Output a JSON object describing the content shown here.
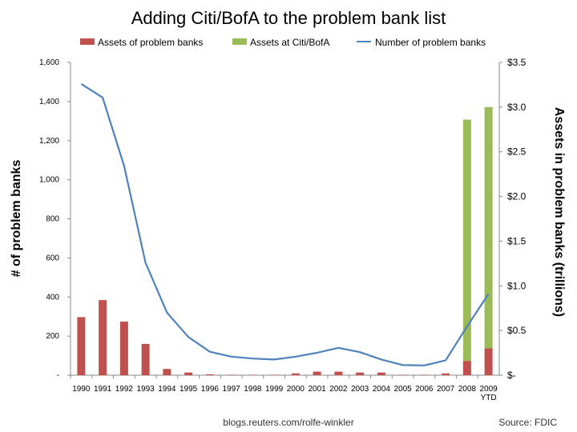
{
  "chart_data": {
    "type": "bar",
    "title": "Adding Citi/BofA to the problem bank list",
    "categories": [
      "1990",
      "1991",
      "1992",
      "1993",
      "1994",
      "1995",
      "1996",
      "1997",
      "1998",
      "1999",
      "2000",
      "2001",
      "2002",
      "2003",
      "2004",
      "2005",
      "2006",
      "2007",
      "2008",
      "2009"
    ],
    "category_sublabels": {
      "2009": "YTD"
    },
    "series": [
      {
        "name": "Assets of problem banks",
        "type": "bar",
        "axis": "right",
        "color": "#c0504d",
        "values": [
          0.65,
          0.84,
          0.6,
          0.35,
          0.07,
          0.03,
          0.01,
          0.005,
          0.005,
          0.005,
          0.02,
          0.04,
          0.04,
          0.03,
          0.03,
          0.005,
          0.005,
          0.02,
          0.16,
          0.3
        ]
      },
      {
        "name": "Assets at Citi/BofA",
        "type": "bar",
        "axis": "right",
        "stacked": true,
        "color": "#9bbb59",
        "values": [
          0,
          0,
          0,
          0,
          0,
          0,
          0,
          0,
          0,
          0,
          0,
          0,
          0,
          0,
          0,
          0,
          0,
          0,
          2.7,
          2.7
        ]
      },
      {
        "name": "Number of problem banks",
        "type": "line",
        "axis": "left",
        "color": "#4f81bd",
        "values": [
          1490,
          1420,
          1070,
          575,
          320,
          195,
          120,
          95,
          85,
          80,
          95,
          115,
          140,
          118,
          80,
          52,
          50,
          76,
          250,
          416
        ]
      }
    ],
    "left_axis": {
      "label": "# of problem banks",
      "ylim": [
        0,
        1600
      ],
      "ticks": [
        0,
        200,
        400,
        600,
        800,
        1000,
        1200,
        1400,
        1600
      ],
      "tick_labels": [
        "-",
        "200",
        "400",
        "600",
        "800",
        "1,000",
        "1,200",
        "1,400",
        "1,600"
      ]
    },
    "right_axis": {
      "label": "Assets in problem banks (trillions)",
      "ylim": [
        0,
        3.5
      ],
      "ticks": [
        0,
        0.5,
        1,
        1.5,
        2,
        2.5,
        3,
        3.5
      ],
      "tick_labels": [
        "$-",
        "$0.5",
        "$1.0",
        "$1.5",
        "$2.0",
        "$2.5",
        "$3.0",
        "$3.5"
      ]
    },
    "legend_position": "top",
    "grid": false
  },
  "footer": {
    "credit": "blogs.reuters.com/rolfe-winkler",
    "source": "Source: FDIC"
  }
}
